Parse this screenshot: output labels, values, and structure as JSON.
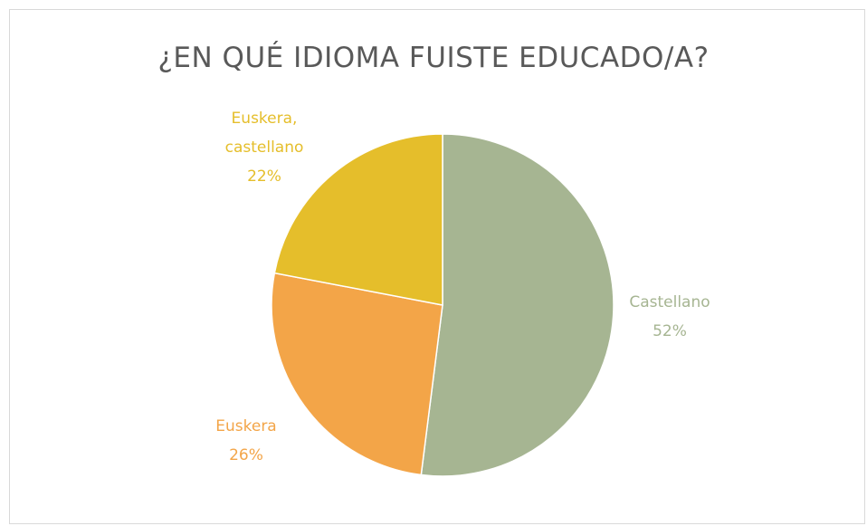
{
  "chart_data": {
    "type": "pie",
    "title": "¿EN QUÉ IDIOMA FUISTE EDUCADO/A?",
    "categories": [
      "Castellano",
      "Euskera",
      "Euskera, castellano"
    ],
    "values": [
      52,
      26,
      22
    ],
    "value_labels": [
      "52%",
      "26%",
      "22%"
    ],
    "colors": [
      "#a6b592",
      "#f3a548",
      "#e5be2b"
    ]
  }
}
